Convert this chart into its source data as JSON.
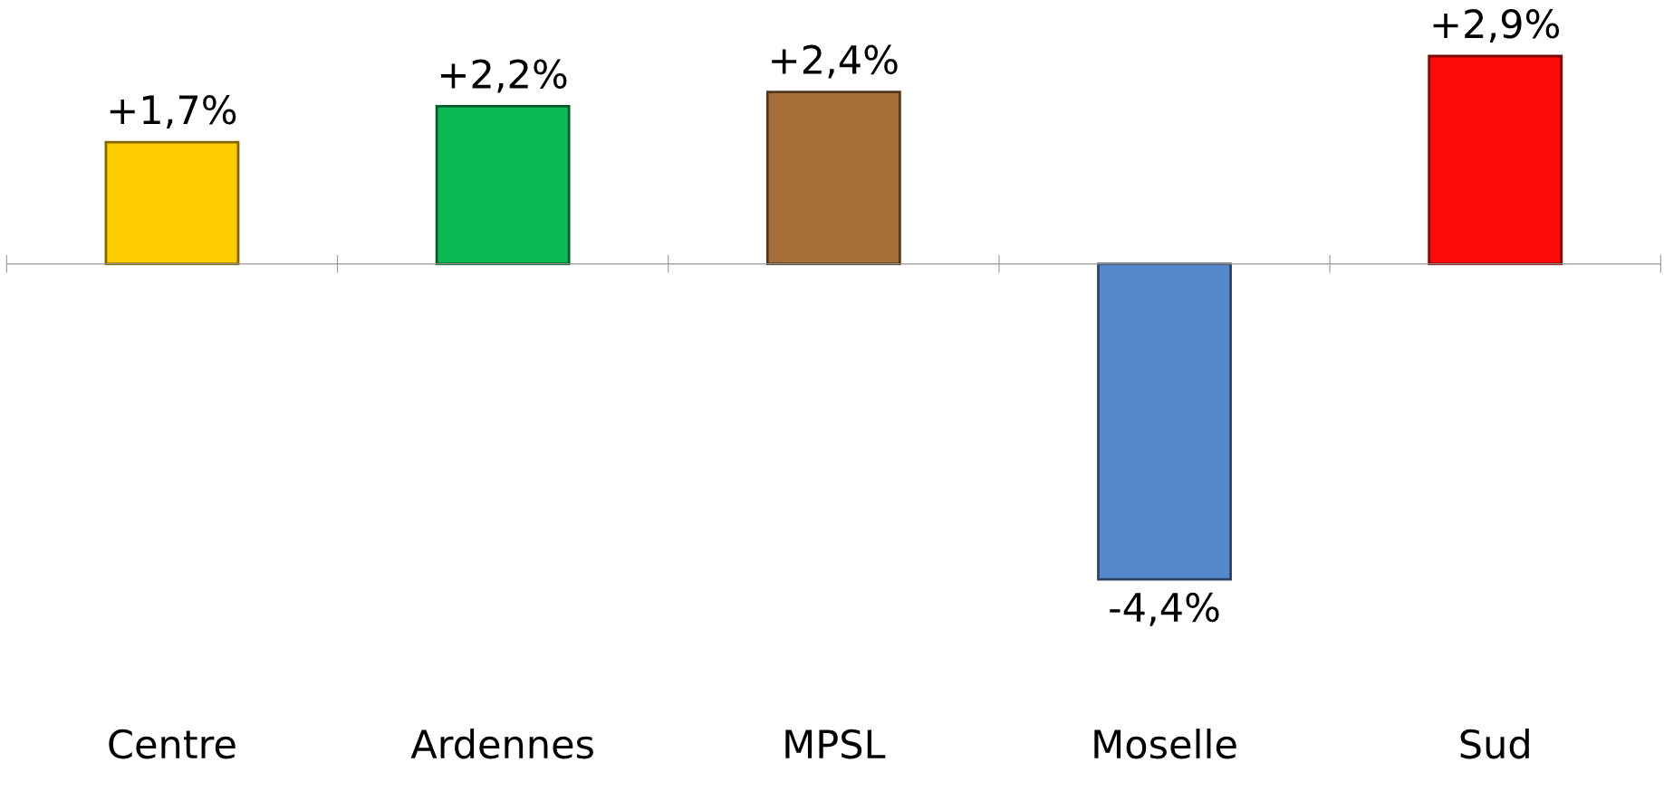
{
  "chart_data": {
    "type": "bar",
    "categories": [
      "Centre",
      "Ardennes",
      "MPSL",
      "Moselle",
      "Sud"
    ],
    "values": [
      1.7,
      2.2,
      2.4,
      -4.4,
      2.9
    ],
    "colors": [
      "#ffcc00",
      "#0bb853",
      "#a36e38",
      "#5588cc",
      "#ff0a0a"
    ],
    "value_labels": [
      "+1,7%",
      "+2,2%",
      "+2,4%",
      "-4,4%",
      "+2,9%"
    ],
    "grid": false,
    "legend": false
  }
}
